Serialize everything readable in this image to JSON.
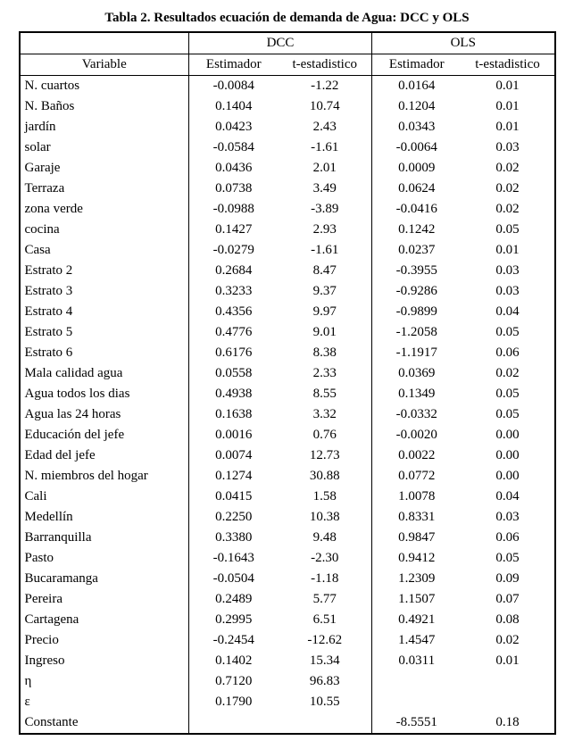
{
  "title": "Tabla 2. Resultados ecuación de demanda de Agua: DCC y OLS",
  "table": {
    "group_headers": {
      "dcc": "DCC",
      "ols": "OLS"
    },
    "col_headers": {
      "variable": "Variable",
      "dcc_estimator": "Estimador",
      "dcc_tstat": "t-estadistico",
      "ols_estimator": "Estimador",
      "ols_tstat": "t-estadistico"
    },
    "rows": [
      [
        "N. cuartos",
        "-0.0084",
        "-1.22",
        "0.0164",
        "0.01"
      ],
      [
        "N. Baños",
        "0.1404",
        "10.74",
        "0.1204",
        "0.01"
      ],
      [
        "jardín",
        "0.0423",
        "2.43",
        "0.0343",
        "0.01"
      ],
      [
        "solar",
        "-0.0584",
        "-1.61",
        "-0.0064",
        "0.03"
      ],
      [
        "Garaje",
        "0.0436",
        "2.01",
        "0.0009",
        "0.02"
      ],
      [
        "Terraza",
        "0.0738",
        "3.49",
        "0.0624",
        "0.02"
      ],
      [
        "zona verde",
        "-0.0988",
        "-3.89",
        "-0.0416",
        "0.02"
      ],
      [
        "cocina",
        "0.1427",
        "2.93",
        "0.1242",
        "0.05"
      ],
      [
        "Casa",
        "-0.0279",
        "-1.61",
        "0.0237",
        "0.01"
      ],
      [
        "Estrato 2",
        "0.2684",
        "8.47",
        "-0.3955",
        "0.03"
      ],
      [
        "Estrato 3",
        "0.3233",
        "9.37",
        "-0.9286",
        "0.03"
      ],
      [
        "Estrato 4",
        "0.4356",
        "9.97",
        "-0.9899",
        "0.04"
      ],
      [
        "Estrato 5",
        "0.4776",
        "9.01",
        "-1.2058",
        "0.05"
      ],
      [
        "Estrato 6",
        "0.6176",
        "8.38",
        "-1.1917",
        "0.06"
      ],
      [
        "Mala calidad agua",
        "0.0558",
        "2.33",
        "0.0369",
        "0.02"
      ],
      [
        "Agua todos los dias",
        "0.4938",
        "8.55",
        "0.1349",
        "0.05"
      ],
      [
        "Agua las 24 horas",
        "0.1638",
        "3.32",
        "-0.0332",
        "0.05"
      ],
      [
        "Educación del jefe",
        "0.0016",
        "0.76",
        "-0.0020",
        "0.00"
      ],
      [
        "Edad del jefe",
        "0.0074",
        "12.73",
        "0.0022",
        "0.00"
      ],
      [
        "N. miembros del hogar",
        "0.1274",
        "30.88",
        "0.0772",
        "0.00"
      ],
      [
        "Cali",
        "0.0415",
        "1.58",
        "1.0078",
        "0.04"
      ],
      [
        "Medellín",
        "0.2250",
        "10.38",
        "0.8331",
        "0.03"
      ],
      [
        "Barranquilla",
        "0.3380",
        "9.48",
        "0.9847",
        "0.06"
      ],
      [
        "Pasto",
        "-0.1643",
        "-2.30",
        "0.9412",
        "0.05"
      ],
      [
        "Bucaramanga",
        "-0.0504",
        "-1.18",
        "1.2309",
        "0.09"
      ],
      [
        "Pereira",
        "0.2489",
        "5.77",
        "1.1507",
        "0.07"
      ],
      [
        "Cartagena",
        "0.2995",
        "6.51",
        "0.4921",
        "0.08"
      ],
      [
        "Precio",
        "-0.2454",
        "-12.62",
        "1.4547",
        "0.02"
      ],
      [
        "Ingreso",
        "0.1402",
        "15.34",
        "0.0311",
        "0.01"
      ],
      [
        "η",
        "0.7120",
        "96.83",
        "",
        ""
      ],
      [
        "ε",
        "0.1790",
        "10.55",
        "",
        ""
      ],
      [
        "Constante",
        "",
        "",
        "-8.5551",
        "0.18"
      ]
    ]
  },
  "chart_data": {
    "type": "table",
    "title": "Tabla 2. Resultados ecuación de demanda de Agua: DCC y OLS",
    "columns": [
      "Variable",
      "DCC Estimador",
      "DCC t-estadistico",
      "OLS Estimador",
      "OLS t-estadistico"
    ]
  }
}
